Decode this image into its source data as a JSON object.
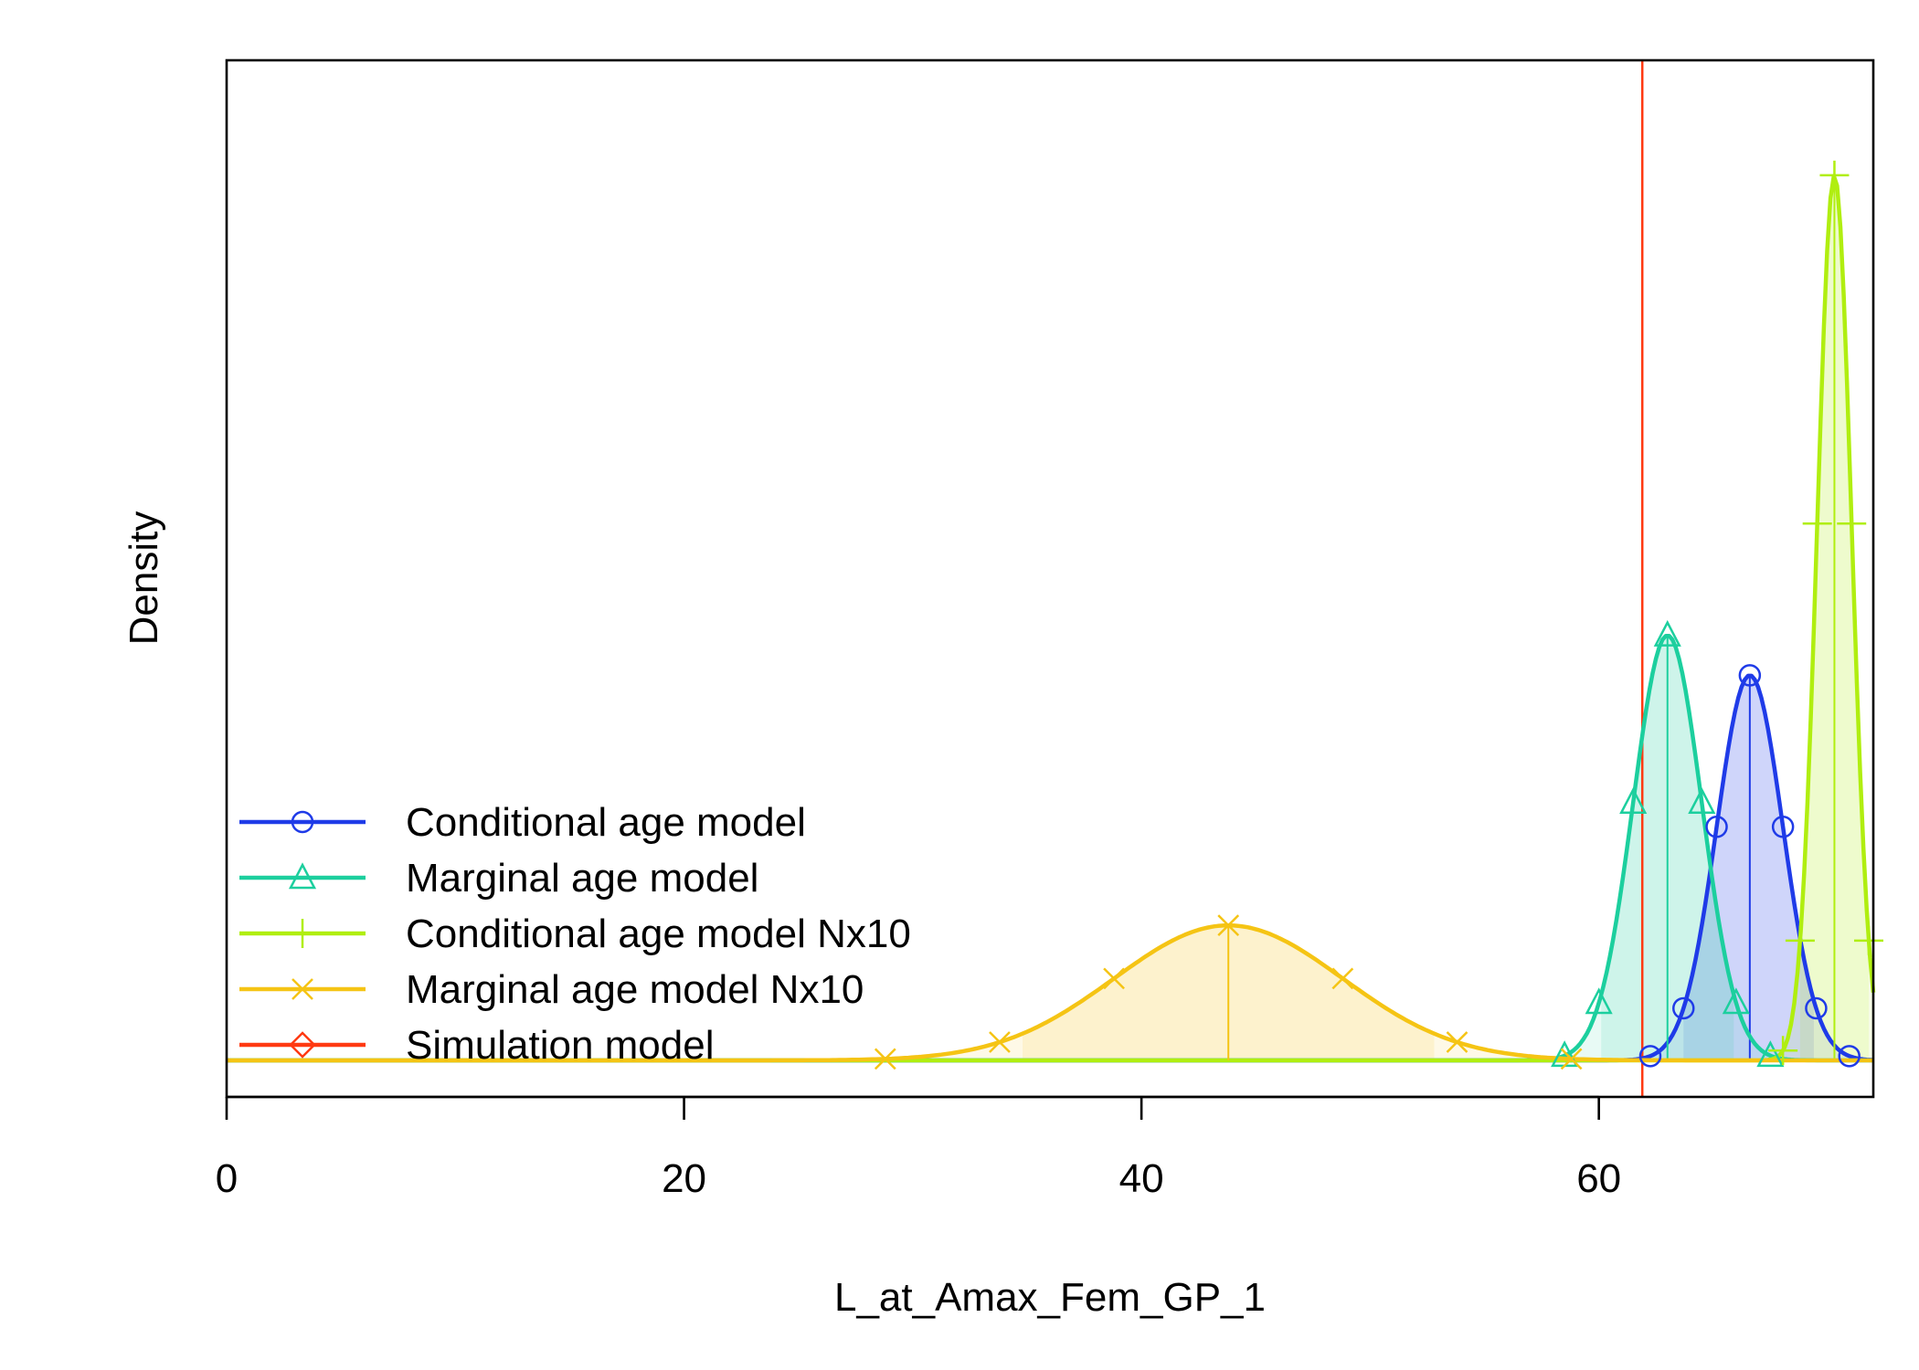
{
  "chart_data": {
    "type": "line",
    "title": "",
    "xlabel": "L_at_Amax_Fem_GP_1",
    "ylabel": "Density",
    "xlim": [
      0,
      72
    ],
    "ylim": [
      0,
      1.0
    ],
    "x_ticks": [
      0,
      20,
      40,
      60
    ],
    "x_tick_labels": [
      "0",
      "20",
      "40",
      "60"
    ],
    "y_ticks_shown": false,
    "legend_position": "bottom-left",
    "series": [
      {
        "name": "Conditional age model",
        "color": "#1f3be8",
        "marker": "circle",
        "distribution": "normal",
        "mean": 66.6,
        "sd": 1.45,
        "peak_density": 0.385,
        "ci": [
          63.7,
          69.4
        ]
      },
      {
        "name": "Marginal age model",
        "color": "#1ccf9e",
        "marker": "triangle",
        "distribution": "normal",
        "mean": 63.0,
        "sd": 1.5,
        "peak_density": 0.425,
        "ci": [
          60.1,
          65.9
        ]
      },
      {
        "name": "Conditional age model Nx10",
        "color": "#b0ee10",
        "marker": "plus",
        "distribution": "normal",
        "mean": 70.3,
        "sd": 0.75,
        "peak_density": 0.885,
        "ci": [
          68.8,
          71.8
        ]
      },
      {
        "name": "Marginal age model Nx10",
        "color": "#f5c414",
        "marker": "x",
        "distribution": "normal",
        "mean": 43.8,
        "sd": 5.0,
        "peak_density": 0.135,
        "ci": [
          34.8,
          52.8
        ]
      },
      {
        "name": "Simulation model",
        "color": "#ff3a12",
        "marker": "diamond",
        "distribution": "vline",
        "value": 61.9
      }
    ]
  }
}
